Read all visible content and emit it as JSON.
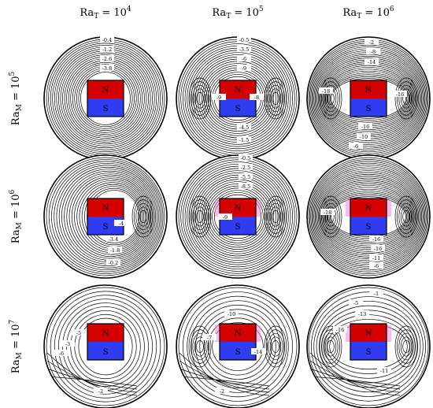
{
  "columns": [
    {
      "prefix": "Ra",
      "sub": "T",
      "base": " = 10",
      "exp": "4"
    },
    {
      "prefix": "Ra",
      "sub": "T",
      "base": " = 10",
      "exp": "5"
    },
    {
      "prefix": "Ra",
      "sub": "T",
      "base": " = 10",
      "exp": "6"
    }
  ],
  "rows": [
    {
      "prefix": "Ra",
      "sub": "M",
      "base": " = 10",
      "exp": "5"
    },
    {
      "prefix": "Ra",
      "sub": "M",
      "base": " = 10",
      "exp": "6"
    },
    {
      "prefix": "Ra",
      "sub": "M",
      "base": " = 10",
      "exp": "7"
    }
  ],
  "magnet": {
    "north_label": "N",
    "south_label": "S",
    "north_color": "#d40000",
    "south_color": "#2f3cf0",
    "highlight_color": "#ff7fe0"
  },
  "panels": [
    {
      "row": 0,
      "col": 0,
      "labels": [
        "-0.4",
        "-1.2",
        "-2.6",
        "-3.8"
      ]
    },
    {
      "row": 0,
      "col": 1,
      "labels": [
        "-0.5",
        "-3.5",
        "-6",
        "-9",
        "-9",
        "-8",
        "-4.5",
        "-1.5"
      ]
    },
    {
      "row": 0,
      "col": 2,
      "labels": [
        "-2",
        "-8",
        "-14",
        "-18",
        "-16",
        "-16",
        "-10",
        "-6"
      ]
    },
    {
      "row": 1,
      "col": 0,
      "labels": [
        "-4",
        "-3.4",
        "-1.8",
        "-0.2"
      ]
    },
    {
      "row": 1,
      "col": 1,
      "labels": [
        "-0.5",
        "-2.5",
        "-5.5",
        "-8.5",
        "-9"
      ]
    },
    {
      "row": 1,
      "col": 2,
      "labels": [
        "-18",
        "-16",
        "-16",
        "-11",
        "-6"
      ]
    },
    {
      "row": 2,
      "col": 0,
      "labels": [
        "-5",
        "-3",
        "-6",
        "-2"
      ]
    },
    {
      "row": 2,
      "col": 1,
      "labels": [
        "-10",
        "-7",
        "-14",
        "-2"
      ]
    },
    {
      "row": 2,
      "col": 2,
      "labels": [
        "-1",
        "-5",
        "-13",
        "-16",
        "-11"
      ]
    }
  ]
}
